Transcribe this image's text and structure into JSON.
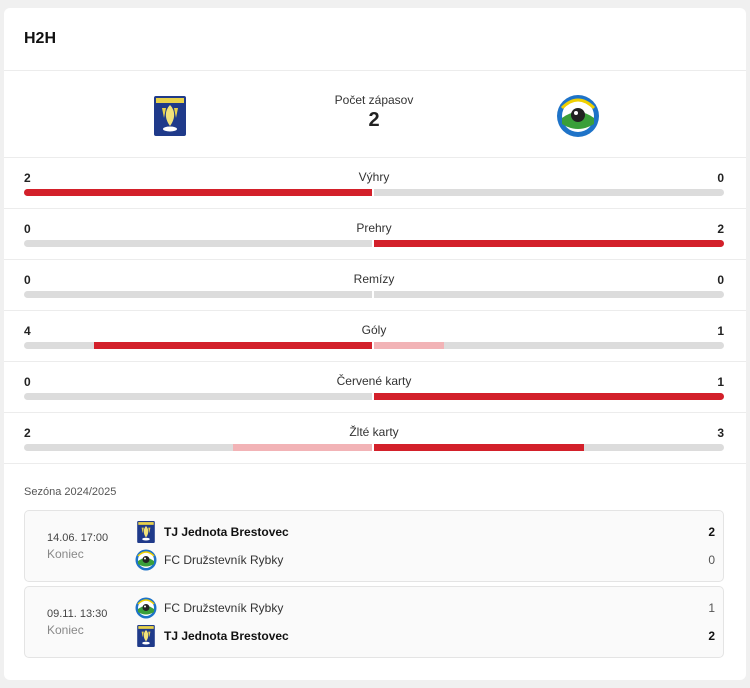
{
  "header": {
    "title": "H2H"
  },
  "teams": {
    "home": {
      "name": "TJ Jednota Brestovec",
      "crest": "brestovec-crest-icon"
    },
    "away": {
      "name": "FC Družstevník Rybky",
      "crest": "rybky-crest-icon"
    },
    "count_label": "Počet zápasov",
    "count_value": "2"
  },
  "colors": {
    "accent": "#d3202a",
    "accent_light": "#f2b3b6",
    "track": "#dcdcdc"
  },
  "stats": [
    {
      "name": "Výhry",
      "home": "2",
      "away": "0",
      "home_share": 1.0,
      "away_share": 0.0,
      "home_lead": true,
      "away_lead": false
    },
    {
      "name": "Prehry",
      "home": "0",
      "away": "2",
      "home_share": 0.0,
      "away_share": 1.0,
      "home_lead": false,
      "away_lead": true
    },
    {
      "name": "Remízy",
      "home": "0",
      "away": "0",
      "home_share": 0.0,
      "away_share": 0.0,
      "home_lead": false,
      "away_lead": false
    },
    {
      "name": "Góly",
      "home": "4",
      "away": "1",
      "home_share": 0.8,
      "away_share": 0.2,
      "home_lead": true,
      "away_lead": false
    },
    {
      "name": "Červené karty",
      "home": "0",
      "away": "1",
      "home_share": 0.0,
      "away_share": 1.0,
      "home_lead": false,
      "away_lead": true
    },
    {
      "name": "Žlté karty",
      "home": "2",
      "away": "3",
      "home_share": 0.4,
      "away_share": 0.6,
      "home_lead": false,
      "away_lead": true
    }
  ],
  "season": {
    "label": "Sezóna 2024/2025"
  },
  "matches": [
    {
      "date": "14.06. 17:00",
      "status": "Koniec",
      "rows": [
        {
          "team": "TJ Jednota Brestovec",
          "score": "2",
          "winner": true,
          "crest": "brestovec-crest-icon"
        },
        {
          "team": "FC Družstevník Rybky",
          "score": "0",
          "winner": false,
          "crest": "rybky-crest-icon"
        }
      ]
    },
    {
      "date": "09.11. 13:30",
      "status": "Koniec",
      "rows": [
        {
          "team": "FC Družstevník Rybky",
          "score": "1",
          "winner": false,
          "crest": "rybky-crest-icon"
        },
        {
          "team": "TJ Jednota Brestovec",
          "score": "2",
          "winner": true,
          "crest": "brestovec-crest-icon"
        }
      ]
    }
  ]
}
